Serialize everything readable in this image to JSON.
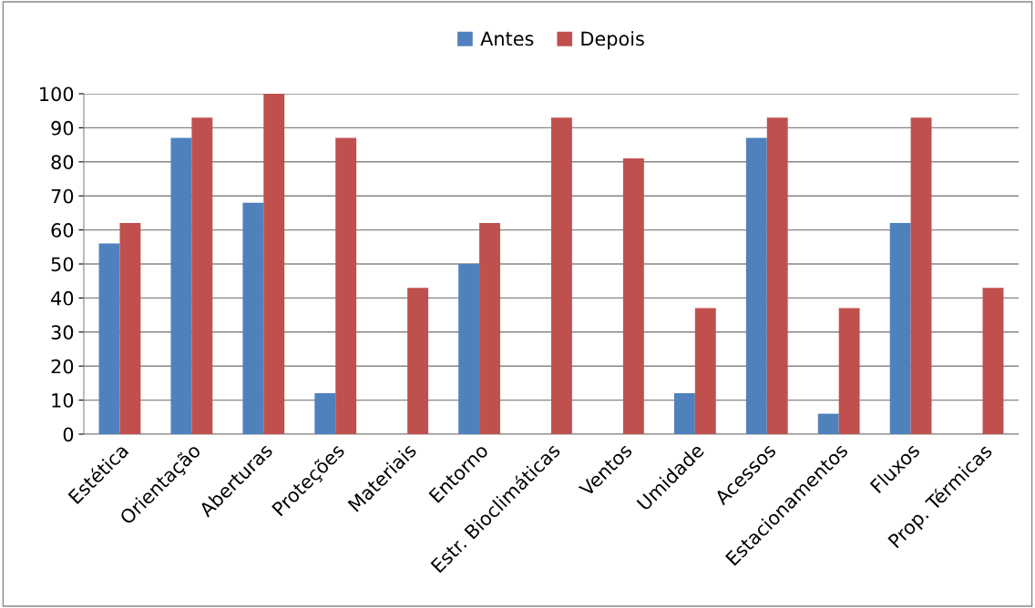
{
  "chart_data": {
    "type": "bar",
    "categories": [
      "Estética",
      "Orientação",
      "Aberturas",
      "Proteções",
      "Materiais",
      "Entorno",
      "Estr. Bioclimáticas",
      "Ventos",
      "Umidade",
      "Acessos",
      "Estacionamentos",
      "Fluxos",
      "Prop. Térmicas"
    ],
    "series": [
      {
        "name": "Antes",
        "color": "#4f81bd",
        "values": [
          56,
          87,
          68,
          12,
          0,
          50,
          0,
          0,
          12,
          87,
          6,
          62,
          0
        ]
      },
      {
        "name": "Depois",
        "color": "#c0504d",
        "values": [
          62,
          93,
          100,
          87,
          43,
          62,
          93,
          81,
          37,
          93,
          37,
          93,
          43
        ]
      }
    ],
    "ylim": [
      0,
      100
    ],
    "yticks": [
      0,
      10,
      20,
      30,
      40,
      50,
      60,
      70,
      80,
      90,
      100
    ],
    "grid": "y",
    "legend": "top"
  }
}
